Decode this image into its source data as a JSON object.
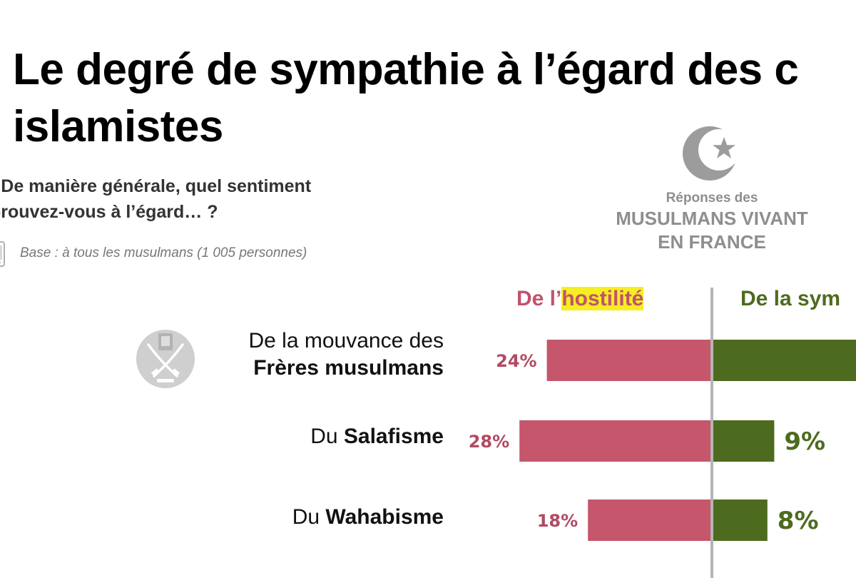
{
  "title": {
    "line1": "Le degré de sympathie à l’égard des c",
    "line2": "islamistes"
  },
  "question": {
    "line1": ": De manière générale, quel sentiment",
    "line2": "prouvez-vous à l’égard… ?"
  },
  "base": "Base : à tous les musulmans (1 005 personnes)",
  "respondents": {
    "line1": "Réponses des",
    "line2": "MUSULMANS VIVANT",
    "line3": "EN FRANCE"
  },
  "legend": {
    "hostility_prefix": "De l’",
    "hostility_highlight": "hostilité",
    "sympathy": "De la sym"
  },
  "categories": [
    {
      "line1": "De la mouvance des",
      "line2_bold": "Frères musulmans"
    },
    {
      "prefix": "Du ",
      "bold": "Salafisme"
    },
    {
      "prefix": "Du ",
      "bold": "Wahabisme"
    }
  ],
  "chart_data": {
    "type": "bar",
    "orientation": "horizontal-diverging",
    "unit": "%",
    "categories": [
      "De la mouvance des Frères musulmans",
      "Du Salafisme",
      "Du Wahabisme"
    ],
    "series": [
      {
        "name": "De l’hostilité",
        "values": [
          24,
          28,
          18
        ],
        "labels": [
          "24%",
          "28%",
          "18%"
        ],
        "color": "#c5566c"
      },
      {
        "name": "De la sym",
        "values": [
          null,
          9,
          8
        ],
        "labels": [
          "",
          "9%",
          "8%"
        ],
        "color": "#4d6b1e"
      }
    ],
    "sympathy_first_bar_truncated": true,
    "colors": {
      "hostility_bar": "#c5566c",
      "hostility_text": "#b24a62",
      "sympathy_bar": "#4d6b1e",
      "axis": "#b5b5b5",
      "highlight": "#f6ee22"
    }
  }
}
